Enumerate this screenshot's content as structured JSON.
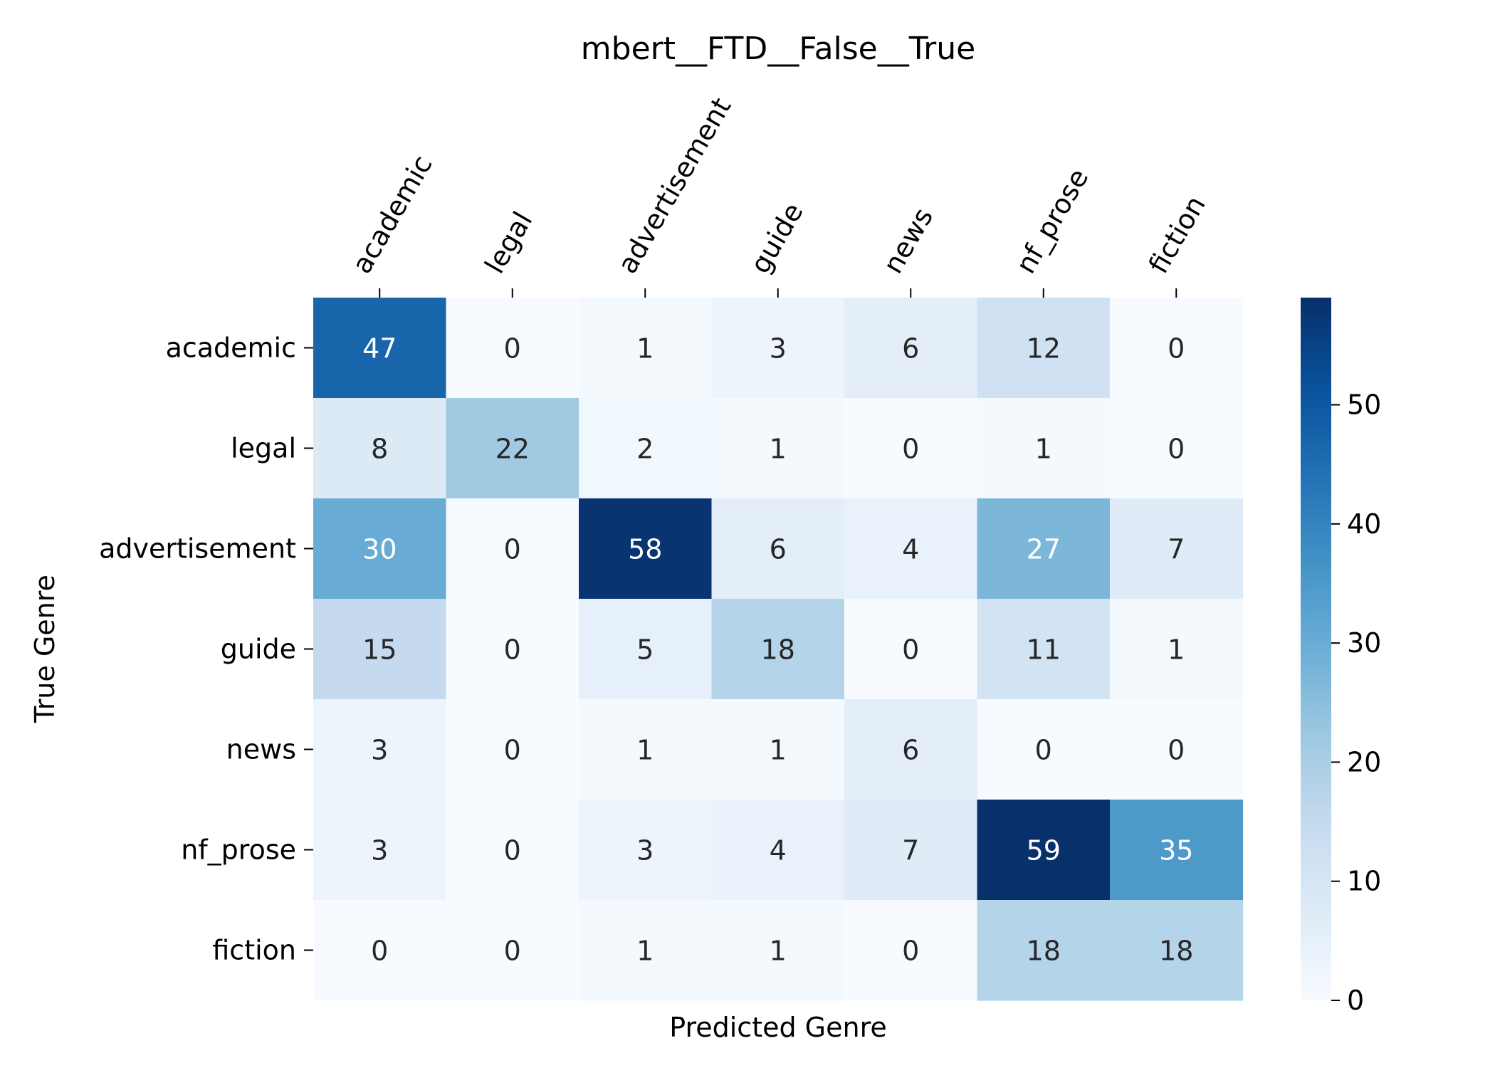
{
  "chart_data": {
    "type": "heatmap",
    "title": "mbert__FTD__False__True",
    "xlabel": "Predicted Genre",
    "ylabel": "True Genre",
    "x_categories": [
      "academic",
      "legal",
      "advertisement",
      "guide",
      "news",
      "nf_prose",
      "fiction"
    ],
    "y_categories": [
      "academic",
      "legal",
      "advertisement",
      "guide",
      "news",
      "nf_prose",
      "fiction"
    ],
    "values": [
      [
        47,
        0,
        1,
        3,
        6,
        12,
        0
      ],
      [
        8,
        22,
        2,
        1,
        0,
        1,
        0
      ],
      [
        30,
        0,
        58,
        6,
        4,
        27,
        7
      ],
      [
        15,
        0,
        5,
        18,
        0,
        11,
        1
      ],
      [
        3,
        0,
        1,
        1,
        6,
        0,
        0
      ],
      [
        3,
        0,
        3,
        4,
        7,
        59,
        35
      ],
      [
        0,
        0,
        1,
        1,
        0,
        18,
        18
      ]
    ],
    "vmin": 0,
    "vmax": 59,
    "colormap": "Blues",
    "colorbar": {
      "ticks": [
        0,
        10,
        20,
        30,
        40,
        50
      ],
      "tick_labels": [
        "0",
        "10",
        "20",
        "30",
        "40",
        "50"
      ]
    },
    "x_axis_position": "top",
    "annotation_text_colors": {
      "light_cells": "#262626",
      "dark_cells": "#ffffff"
    },
    "grid": false
  }
}
